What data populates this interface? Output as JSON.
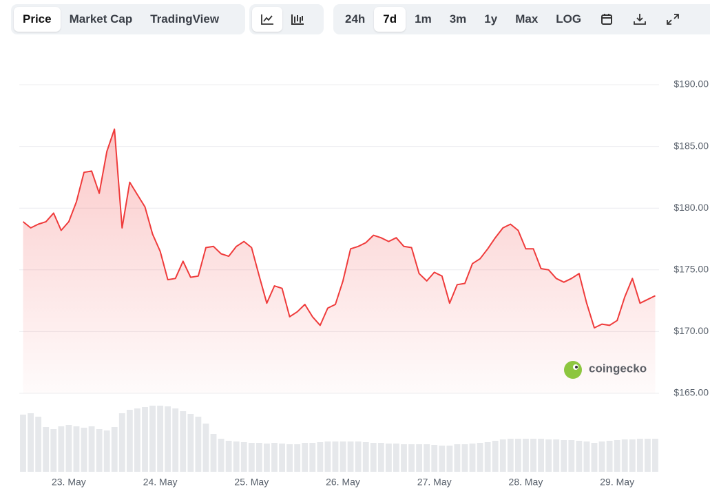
{
  "toolbar": {
    "views": [
      "Price",
      "Market Cap",
      "TradingView"
    ],
    "ranges": [
      "24h",
      "7d",
      "1m",
      "3m",
      "1y",
      "Max",
      "LOG"
    ]
  },
  "watermark": "coingecko",
  "chart_data": {
    "type": "line",
    "categories": [
      null,
      null,
      null,
      null,
      null,
      null,
      "23. May",
      null,
      null,
      null,
      null,
      null,
      null,
      null,
      null,
      null,
      null,
      null,
      "24. May",
      null,
      null,
      null,
      null,
      null,
      null,
      null,
      null,
      null,
      null,
      null,
      "25. May",
      null,
      null,
      null,
      null,
      null,
      null,
      null,
      null,
      null,
      null,
      null,
      "26. May",
      null,
      null,
      null,
      null,
      null,
      null,
      null,
      null,
      null,
      null,
      null,
      "27. May",
      null,
      null,
      null,
      null,
      null,
      null,
      null,
      null,
      null,
      null,
      null,
      "28. May",
      null,
      null,
      null,
      null,
      null,
      null,
      null,
      null,
      null,
      null,
      null,
      "29. May",
      null,
      null,
      null,
      null,
      null
    ],
    "series": [
      {
        "color": "#ef3b3b",
        "values": [
          178.9,
          178.4,
          178.7,
          178.9,
          179.6,
          178.2,
          178.9,
          180.5,
          182.9,
          183.0,
          181.2,
          184.6,
          186.4,
          178.4,
          182.1,
          181.1,
          180.1,
          177.9,
          176.5,
          174.2,
          174.3,
          175.7,
          174.4,
          174.5,
          176.8,
          176.9,
          176.3,
          176.1,
          176.9,
          177.3,
          176.8,
          174.5,
          172.3,
          173.7,
          173.5,
          171.2,
          171.6,
          172.2,
          171.2,
          170.5,
          171.9,
          172.2,
          174.1,
          176.7,
          176.9,
          177.2,
          177.8,
          177.6,
          177.3,
          177.6,
          176.9,
          176.8,
          174.7,
          174.1,
          174.8,
          174.5,
          172.3,
          173.8,
          173.9,
          175.5,
          175.9,
          176.7,
          177.6,
          178.4,
          178.7,
          178.2,
          176.7,
          176.7,
          175.1,
          175.0,
          174.3,
          174.0,
          174.3,
          174.7,
          172.3,
          170.3,
          170.6,
          170.5,
          170.9,
          172.8,
          174.3,
          172.3,
          172.6,
          172.9
        ]
      }
    ],
    "volume": {
      "color": "#e6e8eb",
      "values": [
        83,
        85,
        80,
        65,
        62,
        66,
        68,
        66,
        64,
        66,
        62,
        60,
        65,
        85,
        90,
        92,
        94,
        96,
        96,
        95,
        92,
        88,
        84,
        80,
        70,
        55,
        48,
        45,
        44,
        43,
        42,
        42,
        41,
        42,
        41,
        40,
        40,
        42,
        42,
        43,
        44,
        44,
        44,
        44,
        44,
        43,
        42,
        42,
        41,
        41,
        40,
        40,
        40,
        40,
        39,
        38,
        38,
        40,
        40,
        41,
        42,
        43,
        45,
        47,
        48,
        48,
        48,
        48,
        48,
        47,
        47,
        46,
        46,
        45,
        44,
        42,
        44,
        45,
        46,
        47,
        47,
        48,
        48,
        48
      ]
    },
    "ylim": [
      165,
      190
    ],
    "yticks": [
      {
        "value": 165,
        "label": "$165.00"
      },
      {
        "value": 170,
        "label": "$170.00"
      },
      {
        "value": 175,
        "label": "$175.00"
      },
      {
        "value": 180,
        "label": "$180.00"
      },
      {
        "value": 185,
        "label": "$185.00"
      },
      {
        "value": 190,
        "label": "$190.00"
      }
    ],
    "grid": true
  }
}
